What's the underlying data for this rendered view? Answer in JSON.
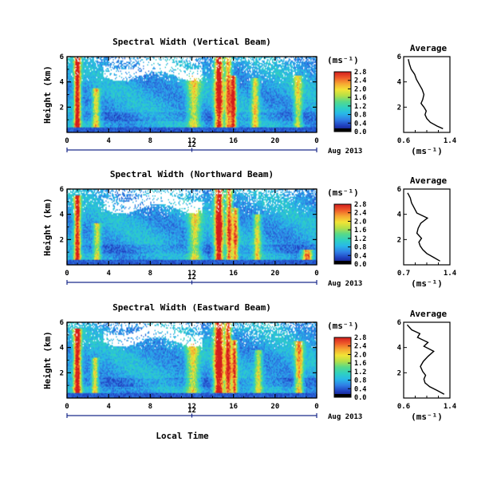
{
  "colors": {
    "colorbar_stops": [
      "#14146e",
      "#1f3fbf",
      "#2f7fe6",
      "#28b8e8",
      "#2fd1c0",
      "#56d98a",
      "#b4e048",
      "#f2e436",
      "#f6a832",
      "#ef5a2a",
      "#d21e1e"
    ],
    "missing": "#ffffff"
  },
  "chart_data": [
    {
      "type": "heatmap",
      "title": "Spectral Width (Vertical Beam)",
      "ylabel": "Height (km)",
      "xlabel": "",
      "xlim": [
        0,
        24
      ],
      "ylim": [
        0,
        6
      ],
      "xticks": [
        "0",
        "4",
        "8",
        "12",
        "16",
        "20",
        "0"
      ],
      "yticks": [
        "2",
        "4",
        "6"
      ],
      "date_hour": "12",
      "date_label": "Aug 2013",
      "colorbar": {
        "unit": "(ms⁻¹)",
        "ticks": [
          "0.0",
          "0.4",
          "0.8",
          "1.2",
          "1.6",
          "2.0",
          "2.4",
          "2.8"
        ],
        "range": [
          0,
          2.8
        ]
      },
      "events": [
        {
          "hour": 1.0,
          "intensity": 2.7,
          "width": 0.3,
          "top": 6
        },
        {
          "hour": 2.8,
          "intensity": 1.5,
          "width": 0.35,
          "top": 3.5
        },
        {
          "hour": 12.2,
          "intensity": 1.3,
          "width": 0.6,
          "top": 4.5
        },
        {
          "hour": 14.6,
          "intensity": 2.6,
          "width": 0.4,
          "top": 6
        },
        {
          "hour": 15.5,
          "intensity": 1.8,
          "width": 0.3,
          "top": 6
        },
        {
          "hour": 16.0,
          "intensity": 2.3,
          "width": 0.25,
          "top": 4.5
        },
        {
          "hour": 18.1,
          "intensity": 1.4,
          "width": 0.35,
          "top": 4.3
        },
        {
          "hour": 22.2,
          "intensity": 1.2,
          "width": 0.4,
          "top": 4.5
        }
      ],
      "average": {
        "title": "Average",
        "xlabel": "(ms⁻¹)",
        "xlim": [
          0.6,
          1.4
        ],
        "xticks": [
          "0.6",
          "1.4"
        ],
        "ylim": [
          0,
          6
        ],
        "yticks": [
          "2",
          "4",
          "6"
        ],
        "profile": [
          {
            "h": 0.3,
            "v": 1.28
          },
          {
            "h": 0.5,
            "v": 1.18
          },
          {
            "h": 0.8,
            "v": 1.06
          },
          {
            "h": 1.1,
            "v": 1.0
          },
          {
            "h": 1.4,
            "v": 0.97
          },
          {
            "h": 1.7,
            "v": 0.99
          },
          {
            "h": 2.0,
            "v": 0.95
          },
          {
            "h": 2.3,
            "v": 0.9
          },
          {
            "h": 2.6,
            "v": 0.93
          },
          {
            "h": 3.0,
            "v": 0.95
          },
          {
            "h": 3.4,
            "v": 0.92
          },
          {
            "h": 3.8,
            "v": 0.87
          },
          {
            "h": 4.2,
            "v": 0.82
          },
          {
            "h": 4.6,
            "v": 0.79
          },
          {
            "h": 5.0,
            "v": 0.73
          },
          {
            "h": 5.4,
            "v": 0.7
          },
          {
            "h": 5.8,
            "v": 0.68
          }
        ]
      }
    },
    {
      "type": "heatmap",
      "title": "Spectral Width (Northward Beam)",
      "ylabel": "Height (km)",
      "xlabel": "",
      "xlim": [
        0,
        24
      ],
      "ylim": [
        0,
        6
      ],
      "xticks": [
        "0",
        "4",
        "8",
        "12",
        "16",
        "20",
        "0"
      ],
      "yticks": [
        "2",
        "4",
        "6"
      ],
      "date_hour": "12",
      "date_label": "Aug 2013",
      "colorbar": {
        "unit": "(ms⁻¹)",
        "ticks": [
          "0.0",
          "0.4",
          "0.8",
          "1.2",
          "1.6",
          "2.0",
          "2.4",
          "2.8"
        ],
        "range": [
          0,
          2.8
        ]
      },
      "events": [
        {
          "hour": 1.0,
          "intensity": 2.4,
          "width": 0.3,
          "top": 5.5
        },
        {
          "hour": 2.9,
          "intensity": 1.3,
          "width": 0.35,
          "top": 3.3
        },
        {
          "hour": 12.3,
          "intensity": 1.2,
          "width": 0.6,
          "top": 4.4
        },
        {
          "hour": 14.6,
          "intensity": 2.7,
          "width": 0.4,
          "top": 6
        },
        {
          "hour": 15.6,
          "intensity": 2.0,
          "width": 0.3,
          "top": 6
        },
        {
          "hour": 16.2,
          "intensity": 1.8,
          "width": 0.25,
          "top": 4.5
        },
        {
          "hour": 18.3,
          "intensity": 1.3,
          "width": 0.35,
          "top": 4.0
        },
        {
          "hour": 23.1,
          "intensity": 2.1,
          "width": 0.5,
          "top": 1.2
        }
      ],
      "average": {
        "title": "Average",
        "xlabel": "(ms⁻¹)",
        "xlim": [
          0.7,
          1.4
        ],
        "xticks": [
          "0.7",
          "1.4"
        ],
        "ylim": [
          0,
          6
        ],
        "yticks": [
          "2",
          "4",
          "6"
        ],
        "profile": [
          {
            "h": 0.3,
            "v": 1.25
          },
          {
            "h": 0.6,
            "v": 1.15
          },
          {
            "h": 0.9,
            "v": 1.05
          },
          {
            "h": 1.2,
            "v": 0.99
          },
          {
            "h": 1.5,
            "v": 0.95
          },
          {
            "h": 1.8,
            "v": 0.93
          },
          {
            "h": 2.1,
            "v": 0.97
          },
          {
            "h": 2.5,
            "v": 0.9
          },
          {
            "h": 2.9,
            "v": 0.92
          },
          {
            "h": 3.3,
            "v": 0.96
          },
          {
            "h": 3.7,
            "v": 1.06
          },
          {
            "h": 4.1,
            "v": 0.9
          },
          {
            "h": 4.5,
            "v": 0.86
          },
          {
            "h": 4.9,
            "v": 0.82
          },
          {
            "h": 5.3,
            "v": 0.8
          },
          {
            "h": 5.7,
            "v": 0.76
          }
        ]
      }
    },
    {
      "type": "heatmap",
      "title": "Spectral Width (Eastward Beam)",
      "ylabel": "Height (km)",
      "xlabel": "Local Time",
      "xlim": [
        0,
        24
      ],
      "ylim": [
        0,
        6
      ],
      "xticks": [
        "0",
        "4",
        "8",
        "12",
        "16",
        "20",
        "0"
      ],
      "yticks": [
        "2",
        "4",
        "6"
      ],
      "date_hour": "12",
      "date_label": "Aug 2013",
      "colorbar": {
        "unit": "(ms⁻¹)",
        "ticks": [
          "0.0",
          "0.4",
          "0.8",
          "1.2",
          "1.6",
          "2.0",
          "2.4",
          "2.8"
        ],
        "range": [
          0,
          2.8
        ]
      },
      "events": [
        {
          "hour": 1.0,
          "intensity": 2.6,
          "width": 0.35,
          "top": 5.5
        },
        {
          "hour": 2.7,
          "intensity": 1.4,
          "width": 0.3,
          "top": 3.2
        },
        {
          "hour": 12.1,
          "intensity": 1.3,
          "width": 0.6,
          "top": 4.3
        },
        {
          "hour": 14.6,
          "intensity": 2.8,
          "width": 0.45,
          "top": 6
        },
        {
          "hour": 15.5,
          "intensity": 2.2,
          "width": 0.3,
          "top": 6
        },
        {
          "hour": 16.1,
          "intensity": 2.0,
          "width": 0.25,
          "top": 4.6
        },
        {
          "hour": 18.4,
          "intensity": 1.2,
          "width": 0.35,
          "top": 3.8
        },
        {
          "hour": 22.3,
          "intensity": 1.6,
          "width": 0.4,
          "top": 4.5
        }
      ],
      "average": {
        "title": "Average",
        "xlabel": "(ms⁻¹)",
        "xlim": [
          0.6,
          1.4
        ],
        "xticks": [
          "0.6",
          "1.4"
        ],
        "ylim": [
          0,
          6
        ],
        "yticks": [
          "2",
          "4",
          "6"
        ],
        "profile": [
          {
            "h": 0.3,
            "v": 1.3
          },
          {
            "h": 0.6,
            "v": 1.18
          },
          {
            "h": 0.9,
            "v": 1.05
          },
          {
            "h": 1.2,
            "v": 0.97
          },
          {
            "h": 1.5,
            "v": 0.95
          },
          {
            "h": 1.8,
            "v": 0.98
          },
          {
            "h": 2.1,
            "v": 0.93
          },
          {
            "h": 2.5,
            "v": 0.89
          },
          {
            "h": 2.9,
            "v": 0.94
          },
          {
            "h": 3.3,
            "v": 1.02
          },
          {
            "h": 3.7,
            "v": 1.12
          },
          {
            "h": 4.1,
            "v": 0.95
          },
          {
            "h": 4.4,
            "v": 1.02
          },
          {
            "h": 4.8,
            "v": 0.84
          },
          {
            "h": 5.1,
            "v": 0.88
          },
          {
            "h": 5.4,
            "v": 0.74
          },
          {
            "h": 5.8,
            "v": 0.66
          }
        ]
      }
    }
  ]
}
